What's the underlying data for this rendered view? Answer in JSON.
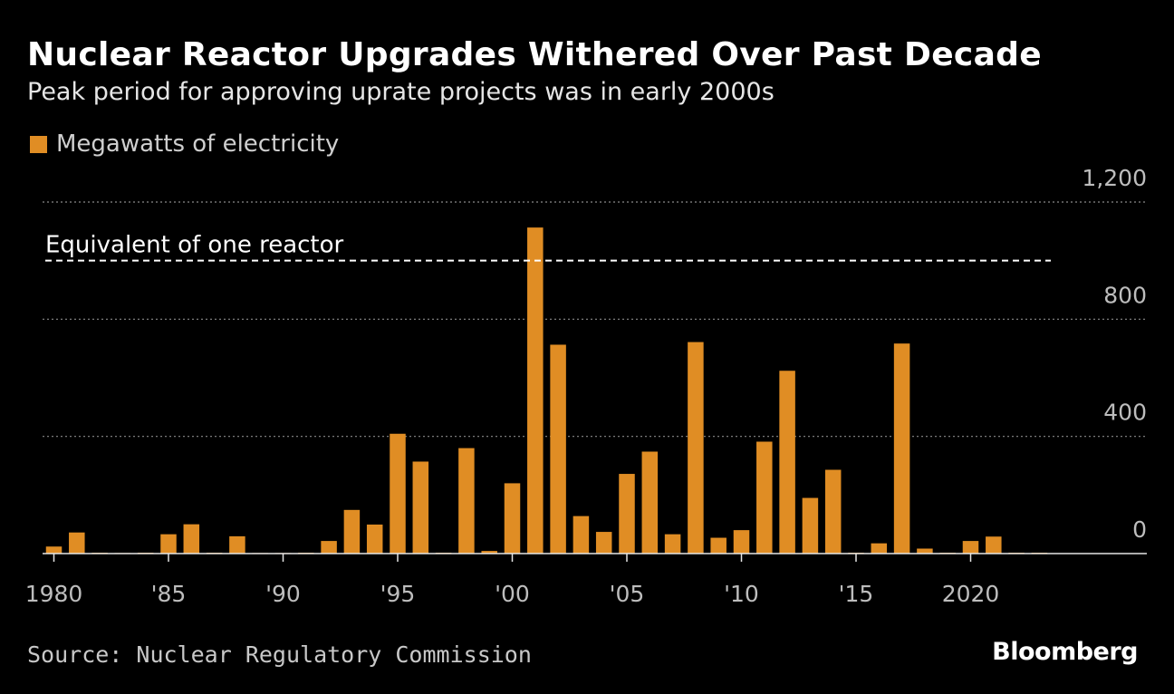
{
  "colors": {
    "background": "#000000",
    "bar": "#E08D24",
    "text": "#FFFFFF",
    "muted": "#BDBDBD"
  },
  "chart_data": {
    "type": "bar",
    "title": "Nuclear Reactor Upgrades Withered Over Past Decade",
    "subtitle": "Peak period for approving uprate projects was in early 2000s",
    "legend": [
      "Megawatts of electricity"
    ],
    "x": [
      1980,
      1981,
      1982,
      1983,
      1984,
      1985,
      1986,
      1987,
      1988,
      1989,
      1990,
      1991,
      1992,
      1993,
      1994,
      1995,
      1996,
      1997,
      1998,
      1999,
      2000,
      2001,
      2002,
      2003,
      2004,
      2005,
      2006,
      2007,
      2008,
      2009,
      2010,
      2011,
      2012,
      2013,
      2014,
      2015,
      2016,
      2017,
      2018,
      2019,
      2020,
      2021,
      2022,
      2023
    ],
    "values": [
      24,
      72,
      3,
      2,
      3,
      66,
      100,
      3,
      59,
      2,
      2,
      3,
      43,
      149,
      99,
      409,
      314,
      3,
      360,
      9,
      240,
      1113,
      713,
      128,
      74,
      272,
      348,
      66,
      722,
      54,
      80,
      382,
      624,
      190,
      286,
      3,
      35,
      717,
      17,
      3,
      43,
      58,
      3,
      3
    ],
    "ylim": [
      0,
      1200
    ],
    "yticks": [
      0,
      400,
      800,
      1200
    ],
    "ytick_labels": [
      "0",
      "400",
      "800",
      "1,200"
    ],
    "xticks": [
      1980,
      1985,
      1990,
      1995,
      2000,
      2005,
      2010,
      2015,
      2020
    ],
    "xtick_labels": [
      "1980",
      "'85",
      "'90",
      "'95",
      "'00",
      "'05",
      "'10",
      "'15",
      "2020"
    ],
    "reference_line": {
      "value": 1000,
      "label": "Equivalent of one reactor"
    },
    "ylabel": "Megawatts of electricity",
    "xlabel": ""
  },
  "footer": {
    "source": "Source: Nuclear Regulatory Commission",
    "brand": "Bloomberg"
  }
}
